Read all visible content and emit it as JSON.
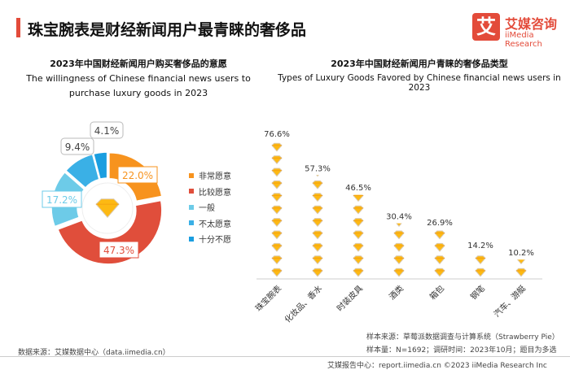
{
  "header": {
    "title": "珠宝腕表是财经新闻用户最青睐的奢侈品",
    "logo_mark": "艾",
    "logo_cn": "艾媒咨询",
    "logo_en": "iiMedia Research"
  },
  "chart_data": [
    {
      "type": "pie",
      "variant": "donut",
      "title": "2023年中国财经新闻用户购买奢侈品的意愿",
      "subtitle": "The willingness of Chinese financial news users to purchase luxury goods in 2023",
      "categories": [
        "非常愿意",
        "比较愿意",
        "一般",
        "不太愿意",
        "十分不愿"
      ],
      "values": [
        22.0,
        47.3,
        17.2,
        9.4,
        4.1
      ],
      "labels": [
        "22.0%",
        "47.3%",
        "17.2%",
        "9.4%",
        "4.1%"
      ],
      "colors": [
        "#f7931e",
        "#e04e3b",
        "#6dcbe8",
        "#3ab0e6",
        "#1a9ee0"
      ],
      "legend": "right",
      "center_icon": "diamond-icon"
    },
    {
      "type": "bar",
      "variant": "pictogram",
      "title": "2023年中国财经新闻用户青睐的奢侈品类型",
      "subtitle": "Types of Luxury Goods Favored by Chinese financial news users in 2023",
      "categories": [
        "珠宝腕表",
        "化妆品、香水",
        "时装皮具",
        "酒类",
        "箱包",
        "钢笔",
        "汽车、游艇"
      ],
      "values": [
        76.6,
        57.3,
        46.5,
        30.4,
        26.9,
        14.2,
        10.2
      ],
      "labels": [
        "76.6%",
        "57.3%",
        "46.5%",
        "30.4%",
        "26.9%",
        "14.2%",
        "10.2%"
      ],
      "unit": "%",
      "icon": "diamond-icon",
      "color": "#fdb913"
    }
  ],
  "footer": {
    "source_left": "数据来源：艾媒数据中心（data.iimedia.cn）",
    "sample_source": "样本来源：草莓派数据调查与计算系统（Strawberry Pie）",
    "sample_info": "样本量：N=1692；调研时间：2023年10月；题目为多选",
    "bottom": "艾媒报告中心：report.iimedia.cn  ©2023  iiMedia Research  Inc"
  }
}
